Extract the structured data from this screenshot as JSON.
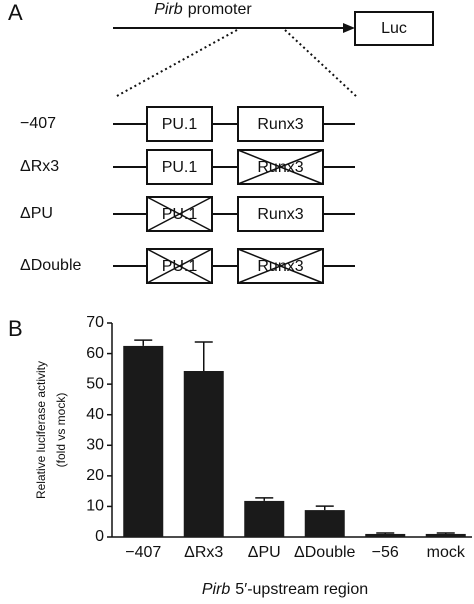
{
  "panel_a": {
    "label": "A",
    "promoter_name": "Pirb",
    "promoter_word": "promoter",
    "reporter": "Luc",
    "constructs": [
      {
        "name": "−407",
        "boxes": [
          {
            "label": "PU.1",
            "deleted": false
          },
          {
            "label": "Runx3",
            "deleted": false
          }
        ]
      },
      {
        "name": "ΔRx3",
        "boxes": [
          {
            "label": "PU.1",
            "deleted": false
          },
          {
            "label": "Runx3",
            "deleted": true
          }
        ]
      },
      {
        "name": "ΔPU",
        "boxes": [
          {
            "label": "PU.1",
            "deleted": true
          },
          {
            "label": "Runx3",
            "deleted": false
          }
        ]
      },
      {
        "name": "ΔDouble",
        "boxes": [
          {
            "label": "PU.1",
            "deleted": true
          },
          {
            "label": "Runx3",
            "deleted": true
          }
        ]
      }
    ]
  },
  "chart_data": {
    "type": "bar",
    "panel_label": "B",
    "ylabel": [
      "Relative luciferase activity",
      "(fold vs mock)"
    ],
    "xlabel_italic": "Pirb",
    "xlabel": "5′-upstream region",
    "categories": [
      "−407",
      "ΔRx3",
      "ΔPU",
      "ΔDouble",
      "−56",
      "mock"
    ],
    "values": [
      62.5,
      54.3,
      11.8,
      8.8,
      1,
      1
    ],
    "errors": [
      1.9,
      9.5,
      1,
      1.3,
      0.3,
      0.3
    ],
    "color": "#1a1a1a",
    "ylim": [
      0,
      70
    ],
    "yticks": [
      0,
      10,
      20,
      30,
      40,
      50,
      60,
      70
    ]
  }
}
